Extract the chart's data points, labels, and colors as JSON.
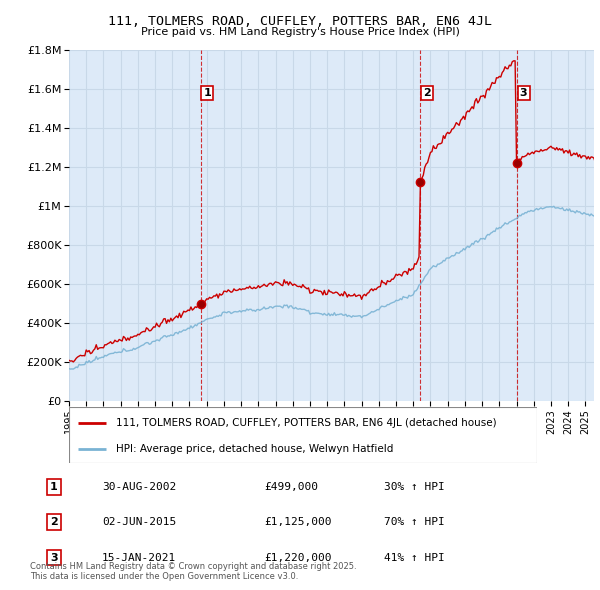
{
  "title": "111, TOLMERS ROAD, CUFFLEY, POTTERS BAR, EN6 4JL",
  "subtitle": "Price paid vs. HM Land Registry's House Price Index (HPI)",
  "legend_line1": "111, TOLMERS ROAD, CUFFLEY, POTTERS BAR, EN6 4JL (detached house)",
  "legend_line2": "HPI: Average price, detached house, Welwyn Hatfield",
  "footer": "Contains HM Land Registry data © Crown copyright and database right 2025.\nThis data is licensed under the Open Government Licence v3.0.",
  "transactions": [
    {
      "num": 1,
      "date": "30-AUG-2002",
      "price": "£499,000",
      "change": "30% ↑ HPI",
      "year": 2002.66
    },
    {
      "num": 2,
      "date": "02-JUN-2015",
      "price": "£1,125,000",
      "change": "70% ↑ HPI",
      "year": 2015.42
    },
    {
      "num": 3,
      "date": "15-JAN-2021",
      "price": "£1,220,000",
      "change": "41% ↑ HPI",
      "year": 2021.04
    }
  ],
  "transaction_values": [
    499000,
    1125000,
    1220000
  ],
  "hpi_color": "#7ab3d4",
  "price_color": "#cc0000",
  "background_color": "#ddeaf8",
  "grid_color": "#c8d8e8",
  "ylim": [
    0,
    1800000
  ],
  "xlim_start": 1995.0,
  "xlim_end": 2025.5
}
